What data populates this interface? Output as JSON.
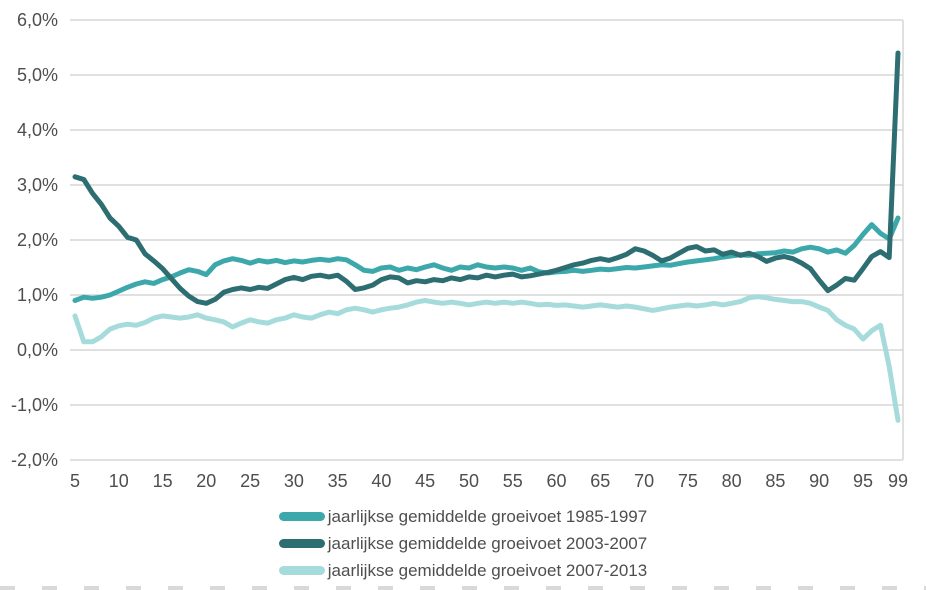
{
  "colors": {
    "background": "#ffffff",
    "grid": "#d6d6d6",
    "text": "#4e4e50",
    "series_1985_1997": "#3da8ab",
    "series_2003_2007": "#2c6e71",
    "series_2007_2013": "#a6dbdc"
  },
  "chart_data": {
    "type": "line",
    "title": "",
    "xlabel": "",
    "ylabel": "",
    "grid": "horizontal",
    "legend_position": "bottom",
    "y_axis": {
      "min": -2.0,
      "max": 6.0,
      "tick_step": 1.0,
      "tick_labels": [
        "6,0%",
        "5,0%",
        "4,0%",
        "3,0%",
        "2,0%",
        "1,0%",
        "0,0%",
        "-1,0%",
        "-2,0%"
      ]
    },
    "x_axis": {
      "min": 5,
      "max": 99,
      "tick_labels": [
        "5",
        "10",
        "15",
        "20",
        "25",
        "30",
        "35",
        "40",
        "45",
        "50",
        "55",
        "60",
        "65",
        "70",
        "75",
        "80",
        "85",
        "90",
        "95",
        "99"
      ]
    },
    "x_label_ticks": [
      5,
      10,
      15,
      20,
      25,
      30,
      35,
      40,
      45,
      50,
      55,
      60,
      65,
      70,
      75,
      80,
      85,
      90,
      95,
      99
    ],
    "x": [
      5,
      6,
      7,
      8,
      9,
      10,
      11,
      12,
      13,
      14,
      15,
      16,
      17,
      18,
      19,
      20,
      21,
      22,
      23,
      24,
      25,
      26,
      27,
      28,
      29,
      30,
      31,
      32,
      33,
      34,
      35,
      36,
      37,
      38,
      39,
      40,
      41,
      42,
      43,
      44,
      45,
      46,
      47,
      48,
      49,
      50,
      51,
      52,
      53,
      54,
      55,
      56,
      57,
      58,
      59,
      60,
      61,
      62,
      63,
      64,
      65,
      66,
      67,
      68,
      69,
      70,
      71,
      72,
      73,
      74,
      75,
      76,
      77,
      78,
      79,
      80,
      81,
      82,
      83,
      84,
      85,
      86,
      87,
      88,
      89,
      90,
      91,
      92,
      93,
      94,
      95,
      96,
      97,
      98,
      99
    ],
    "series": [
      {
        "id": "1985-1997",
        "name": "jaarlijkse gemiddelde groeivoet 1985-1997",
        "color": "#3da8ab",
        "values": [
          0.9,
          0.96,
          0.94,
          0.96,
          1.0,
          1.07,
          1.14,
          1.2,
          1.24,
          1.21,
          1.28,
          1.33,
          1.4,
          1.46,
          1.43,
          1.37,
          1.55,
          1.62,
          1.66,
          1.63,
          1.58,
          1.63,
          1.6,
          1.63,
          1.59,
          1.62,
          1.6,
          1.63,
          1.65,
          1.63,
          1.66,
          1.64,
          1.55,
          1.45,
          1.43,
          1.49,
          1.51,
          1.45,
          1.49,
          1.46,
          1.51,
          1.55,
          1.49,
          1.45,
          1.51,
          1.49,
          1.55,
          1.51,
          1.49,
          1.51,
          1.49,
          1.45,
          1.49,
          1.42,
          1.4,
          1.42,
          1.43,
          1.45,
          1.43,
          1.45,
          1.47,
          1.46,
          1.48,
          1.5,
          1.49,
          1.51,
          1.53,
          1.55,
          1.54,
          1.57,
          1.6,
          1.62,
          1.64,
          1.66,
          1.69,
          1.71,
          1.73,
          1.72,
          1.75,
          1.76,
          1.77,
          1.8,
          1.78,
          1.84,
          1.87,
          1.84,
          1.78,
          1.82,
          1.76,
          1.9,
          2.1,
          2.28,
          2.12,
          2.02,
          2.4
        ]
      },
      {
        "id": "2003-2007",
        "name": "jaarlijkse gemiddelde groeivoet 2003-2007",
        "color": "#2c6e71",
        "values": [
          3.15,
          3.1,
          2.85,
          2.65,
          2.4,
          2.25,
          2.05,
          2.0,
          1.75,
          1.62,
          1.48,
          1.3,
          1.12,
          0.98,
          0.88,
          0.85,
          0.92,
          1.05,
          1.1,
          1.13,
          1.1,
          1.14,
          1.12,
          1.2,
          1.28,
          1.32,
          1.28,
          1.34,
          1.36,
          1.33,
          1.36,
          1.25,
          1.1,
          1.13,
          1.18,
          1.28,
          1.33,
          1.31,
          1.22,
          1.26,
          1.24,
          1.28,
          1.26,
          1.31,
          1.28,
          1.33,
          1.31,
          1.36,
          1.33,
          1.36,
          1.38,
          1.33,
          1.35,
          1.38,
          1.41,
          1.45,
          1.5,
          1.55,
          1.58,
          1.63,
          1.66,
          1.63,
          1.68,
          1.74,
          1.84,
          1.8,
          1.72,
          1.62,
          1.67,
          1.76,
          1.85,
          1.88,
          1.8,
          1.82,
          1.74,
          1.78,
          1.72,
          1.76,
          1.7,
          1.61,
          1.67,
          1.7,
          1.66,
          1.58,
          1.48,
          1.27,
          1.08,
          1.18,
          1.3,
          1.27,
          1.48,
          1.7,
          1.79,
          1.68,
          5.4
        ]
      },
      {
        "id": "2007-2013",
        "name": "jaarlijkse gemiddelde groeivoet 2007-2013",
        "color": "#a6dbdc",
        "values": [
          0.62,
          0.15,
          0.15,
          0.24,
          0.38,
          0.44,
          0.47,
          0.45,
          0.5,
          0.58,
          0.62,
          0.6,
          0.58,
          0.6,
          0.64,
          0.58,
          0.55,
          0.51,
          0.42,
          0.49,
          0.55,
          0.51,
          0.49,
          0.55,
          0.58,
          0.64,
          0.6,
          0.58,
          0.64,
          0.69,
          0.66,
          0.73,
          0.76,
          0.73,
          0.69,
          0.73,
          0.76,
          0.78,
          0.82,
          0.87,
          0.9,
          0.87,
          0.85,
          0.87,
          0.85,
          0.82,
          0.85,
          0.87,
          0.85,
          0.87,
          0.85,
          0.87,
          0.85,
          0.82,
          0.83,
          0.81,
          0.82,
          0.8,
          0.78,
          0.8,
          0.82,
          0.8,
          0.78,
          0.8,
          0.78,
          0.75,
          0.72,
          0.75,
          0.78,
          0.8,
          0.82,
          0.8,
          0.82,
          0.85,
          0.82,
          0.85,
          0.88,
          0.95,
          0.97,
          0.95,
          0.92,
          0.9,
          0.88,
          0.88,
          0.85,
          0.78,
          0.72,
          0.55,
          0.45,
          0.38,
          0.2,
          0.35,
          0.45,
          -0.3,
          -1.28
        ]
      }
    ]
  },
  "legend": {
    "items": [
      {
        "label": "jaarlijkse gemiddelde groeivoet 1985-1997"
      },
      {
        "label": "jaarlijkse gemiddelde groeivoet 2003-2007"
      },
      {
        "label": "jaarlijkse gemiddelde groeivoet 2007-2013"
      }
    ]
  }
}
